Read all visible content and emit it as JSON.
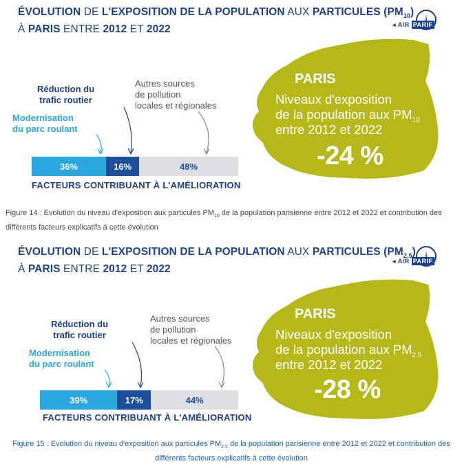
{
  "logo": {
    "air": "AIR",
    "parif": "PARIF"
  },
  "figures": [
    {
      "title_parts": {
        "p1": "ÉVOLUTION",
        "p2": " DE ",
        "p3": "L'EXPOSITION DE LA POPULATION",
        "p4": " AUX ",
        "p5": "PARTICULES (PM",
        "sub": "10",
        "p6": ")",
        "p7": "À ",
        "p8": "PARIS",
        "p9": " ENTRE ",
        "p10": "2012",
        "p11": " ET ",
        "p12": "2022"
      },
      "labels": {
        "reduction_l1": "Réduction du",
        "reduction_l2": "trafic routier",
        "modern_l1": "Modernisation",
        "modern_l2": "du parc roulant",
        "autres_l1": "Autres sources",
        "autres_l2": "de pollution",
        "autres_l3": "locales et régionales"
      },
      "paris": {
        "title": "PARIS",
        "l1": "Niveaux d'exposition",
        "l2": "de la population aux PM",
        "l2_sub": "10",
        "l3": "entre 2012 et 2022",
        "change": "-24 %"
      },
      "chart_data": {
        "type": "bar",
        "orientation": "horizontal-stacked",
        "categories": [
          "Modernisation du parc roulant",
          "Réduction du trafic routier",
          "Autres sources de pollution locales et régionales"
        ],
        "values": [
          36,
          16,
          48
        ],
        "value_labels": [
          "36%",
          "16%",
          "48%"
        ],
        "xlabel": "FACTEURS CONTRIBUANT À L'AMÉLIORATION",
        "colors": [
          "#2aa7df",
          "#1d4f9c",
          "#dedfe3"
        ]
      },
      "caption": {
        "a": "Figure 14 : Evolution du niveau d'exposition aux particules PM",
        "sub": "10",
        "b": " de la population parisienne entre 2012 et 2022 et contribution des différents facteurs explicatifs à cette évolution"
      }
    },
    {
      "title_parts": {
        "p1": "ÉVOLUTION",
        "p2": " DE ",
        "p3": "L'EXPOSITION DE LA POPULATION",
        "p4": " AUX ",
        "p5": "PARTICULES (PM",
        "sub": "2.5",
        "p6": ")",
        "p7": "À ",
        "p8": "PARIS",
        "p9": " ENTRE ",
        "p10": "2012",
        "p11": " ET ",
        "p12": "2022"
      },
      "labels": {
        "reduction_l1": "Réduction du",
        "reduction_l2": "trafic routier",
        "modern_l1": "Modernisation",
        "modern_l2": "du parc roulant",
        "autres_l1": "Autres sources",
        "autres_l2": "de pollution",
        "autres_l3": "locales et régionales"
      },
      "paris": {
        "title": "PARIS",
        "l1": "Niveaux d'exposition",
        "l2": "de la population aux PM",
        "l2_sub": "2.5",
        "l3": "entre 2012 et 2022",
        "change": "-28 %"
      },
      "chart_data": {
        "type": "bar",
        "orientation": "horizontal-stacked",
        "categories": [
          "Modernisation du parc roulant",
          "Réduction du trafic routier",
          "Autres sources de pollution locales et régionales"
        ],
        "values": [
          39,
          17,
          44
        ],
        "value_labels": [
          "39%",
          "17%",
          "44%"
        ],
        "xlabel": "FACTEURS CONTRIBUANT À L'AMÉLIORATION",
        "colors": [
          "#2aa7df",
          "#1d4f9c",
          "#dedfe3"
        ]
      },
      "caption": {
        "a": "Figure 15 : Evolution du niveau d'exposition aux particules PM",
        "sub": "2.5",
        "b": " de la population parisienne entre 2012 et 2022 et contribution des différents facteurs explicatifs à cette évolution"
      }
    }
  ],
  "paris_color": "#b6b81a"
}
